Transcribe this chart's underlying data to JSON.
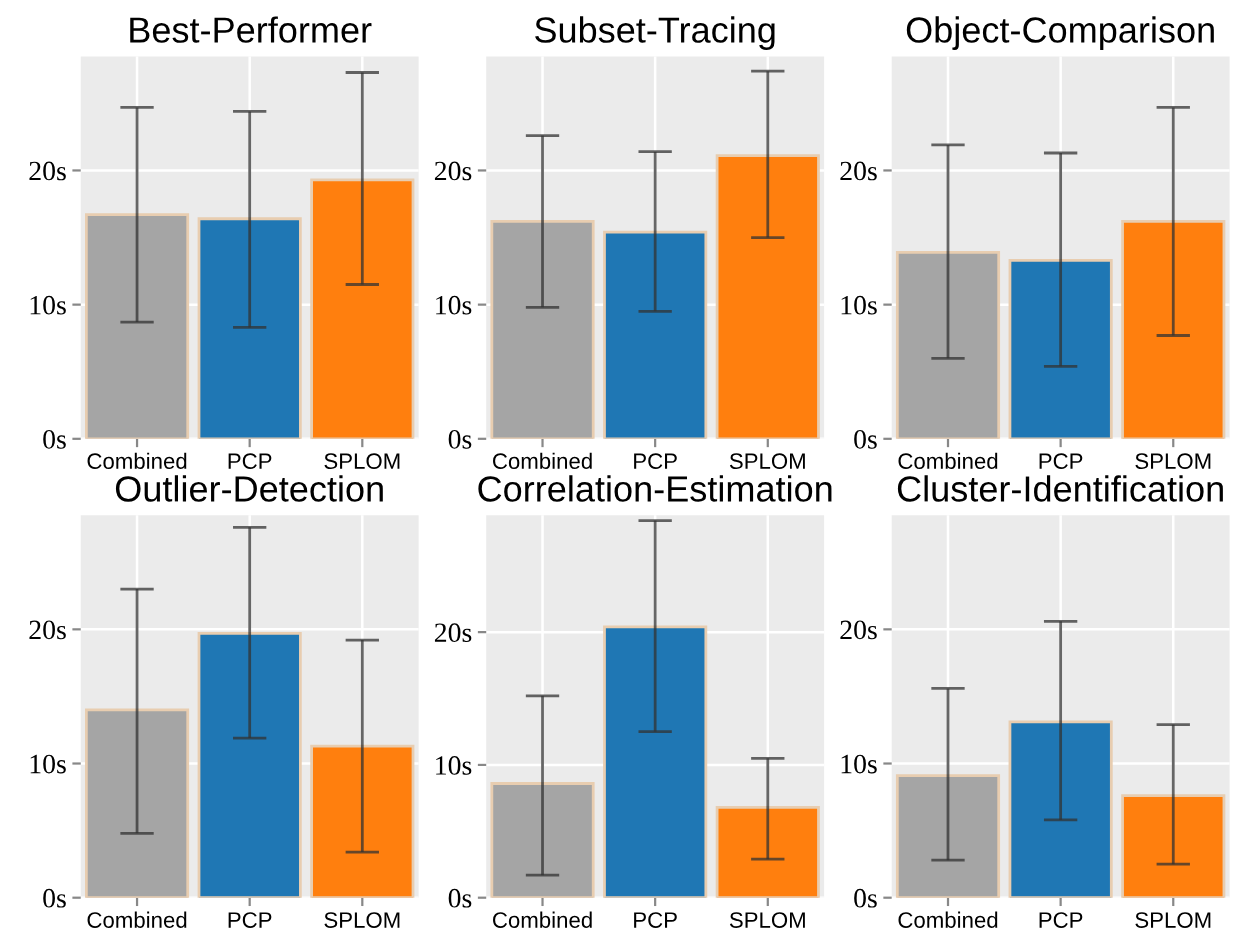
{
  "chart_data": [
    {
      "type": "bar",
      "title": "Best-Performer",
      "categories": [
        "Combined",
        "PCP",
        "SPLOM"
      ],
      "colors": [
        "#a5a5a5",
        "#1f77b4",
        "#ff7f0e"
      ],
      "values": [
        16.7,
        16.4,
        19.3
      ],
      "errors": [
        [
          8.7,
          24.7
        ],
        [
          8.3,
          24.4
        ],
        [
          11.5,
          27.3
        ]
      ],
      "ylim": [
        0,
        28.5
      ],
      "yticks": [
        {
          "value": 0,
          "label": "0s"
        },
        {
          "value": 10,
          "label": "10s"
        },
        {
          "value": 20,
          "label": "20s"
        }
      ],
      "grid": true
    },
    {
      "type": "bar",
      "title": "Subset-Tracing",
      "categories": [
        "Combined",
        "PCP",
        "SPLOM"
      ],
      "colors": [
        "#a5a5a5",
        "#1f77b4",
        "#ff7f0e"
      ],
      "values": [
        16.2,
        15.4,
        21.1
      ],
      "errors": [
        [
          9.8,
          22.6
        ],
        [
          9.5,
          21.4
        ],
        [
          15.0,
          27.4
        ]
      ],
      "ylim": [
        0,
        28.5
      ],
      "yticks": [
        {
          "value": 0,
          "label": "0s"
        },
        {
          "value": 10,
          "label": "10s"
        },
        {
          "value": 20,
          "label": "20s"
        }
      ],
      "grid": true
    },
    {
      "type": "bar",
      "title": "Object-Comparison",
      "categories": [
        "Combined",
        "PCP",
        "SPLOM"
      ],
      "colors": [
        "#a5a5a5",
        "#1f77b4",
        "#ff7f0e"
      ],
      "values": [
        13.9,
        13.3,
        16.2
      ],
      "errors": [
        [
          6.0,
          21.9
        ],
        [
          5.4,
          21.3
        ],
        [
          7.7,
          24.7
        ]
      ],
      "ylim": [
        0,
        28.5
      ],
      "yticks": [
        {
          "value": 0,
          "label": "0s"
        },
        {
          "value": 10,
          "label": "10s"
        },
        {
          "value": 20,
          "label": "20s"
        }
      ],
      "grid": true
    },
    {
      "type": "bar",
      "title": "Outlier-Detection",
      "categories": [
        "Combined",
        "PCP",
        "SPLOM"
      ],
      "colors": [
        "#a5a5a5",
        "#1f77b4",
        "#ff7f0e"
      ],
      "values": [
        14.0,
        19.7,
        11.3
      ],
      "errors": [
        [
          4.8,
          23.0
        ],
        [
          11.9,
          27.6
        ],
        [
          3.4,
          19.2
        ]
      ],
      "ylim": [
        0,
        28.5
      ],
      "yticks": [
        {
          "value": 0,
          "label": "0s"
        },
        {
          "value": 10,
          "label": "10s"
        },
        {
          "value": 20,
          "label": "20s"
        }
      ],
      "grid": true
    },
    {
      "type": "bar",
      "title": "Correlation-Estimation",
      "categories": [
        "Combined",
        "PCP",
        "SPLOM"
      ],
      "colors": [
        "#a5a5a5",
        "#1f77b4",
        "#ff7f0e"
      ],
      "values": [
        8.6,
        20.4,
        6.8
      ],
      "errors": [
        [
          1.7,
          15.2
        ],
        [
          12.5,
          28.4
        ],
        [
          2.9,
          10.5
        ]
      ],
      "ylim": [
        0,
        28.8
      ],
      "yticks": [
        {
          "value": 0,
          "label": "0s"
        },
        {
          "value": 10,
          "label": "10s"
        },
        {
          "value": 20,
          "label": "20s"
        }
      ],
      "grid": true
    },
    {
      "type": "bar",
      "title": "Cluster-Identification",
      "categories": [
        "Combined",
        "PCP",
        "SPLOM"
      ],
      "colors": [
        "#a5a5a5",
        "#1f77b4",
        "#ff7f0e"
      ],
      "values": [
        9.1,
        13.1,
        7.6
      ],
      "errors": [
        [
          2.8,
          15.6
        ],
        [
          5.8,
          20.6
        ],
        [
          2.5,
          12.9
        ]
      ],
      "ylim": [
        0,
        28.5
      ],
      "yticks": [
        {
          "value": 0,
          "label": "0s"
        },
        {
          "value": 10,
          "label": "10s"
        },
        {
          "value": 20,
          "label": "20s"
        }
      ],
      "grid": true
    }
  ]
}
